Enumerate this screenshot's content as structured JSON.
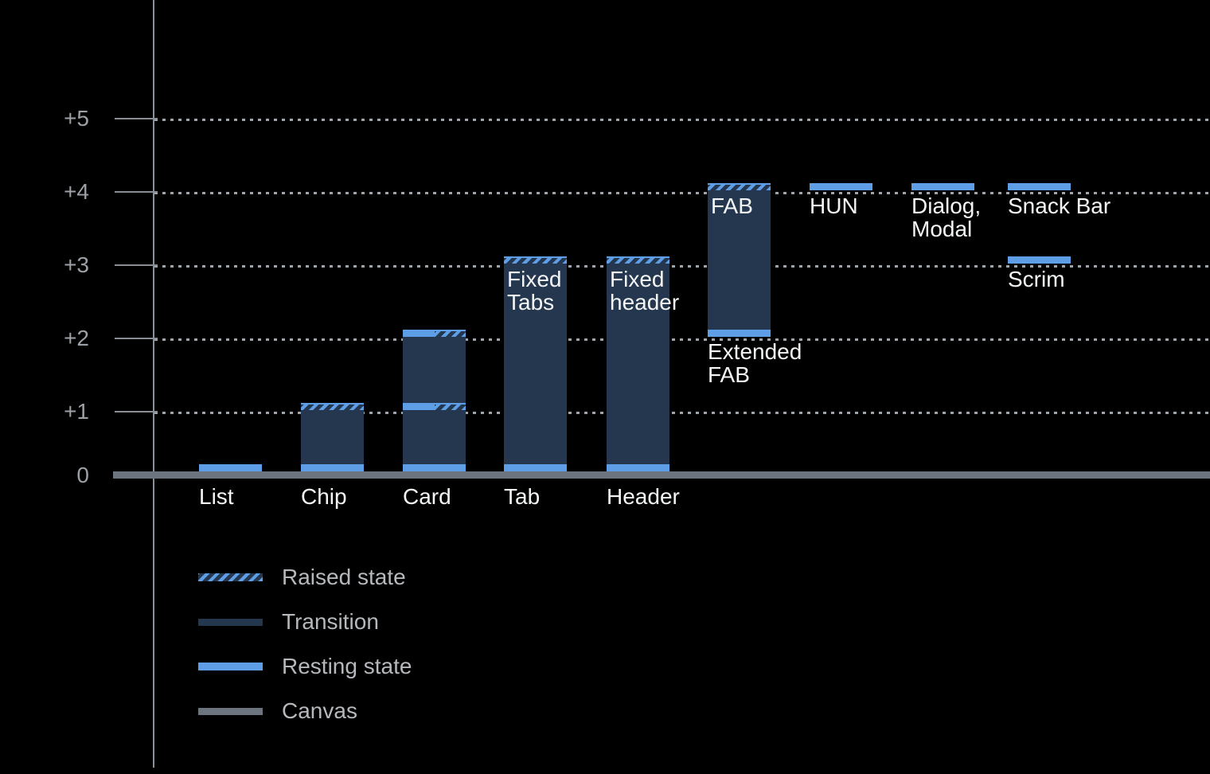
{
  "colors": {
    "resting_blue": "#5E9EE7",
    "transition_navy": "#24374E",
    "canvas_gray": "#6C7480",
    "background": "#000000",
    "grid_dot_gray": "#9FA4AA",
    "axis_text_gray": "#9BA0A6",
    "category_label_white": "#F3F5F6",
    "legend_text_gray": "#B5B8BD"
  },
  "chart_data": {
    "type": "bar",
    "title": "",
    "y_axis": {
      "range": [
        0,
        5
      ],
      "grid": "dotted-horizontal",
      "ticks": [
        {
          "label": "+5",
          "level": 5
        },
        {
          "label": "+4",
          "level": 4
        },
        {
          "label": "+3",
          "level": 3
        },
        {
          "label": "+2",
          "level": 2
        },
        {
          "label": "+1",
          "level": 1
        },
        {
          "label": "0",
          "level": 0
        }
      ]
    },
    "components": [
      {
        "name": "list",
        "col": 0,
        "label_lines": [
          "List"
        ],
        "label_placement": "axis",
        "markers": [
          {
            "level": 0,
            "style": "resting"
          }
        ]
      },
      {
        "name": "chip",
        "col": 1,
        "label_lines": [
          "Chip"
        ],
        "label_placement": "axis",
        "bar": {
          "from": 0,
          "to": 1
        },
        "markers": [
          {
            "level": 0,
            "style": "resting"
          },
          {
            "level": 1,
            "style": "raised"
          }
        ]
      },
      {
        "name": "card",
        "col": 2,
        "label_lines": [
          "Card"
        ],
        "label_placement": "axis",
        "bar": {
          "from": 0,
          "to": 2
        },
        "markers": [
          {
            "level": 0,
            "style": "resting"
          },
          {
            "level": 1,
            "style": "resting-raised"
          },
          {
            "level": 2,
            "style": "resting-raised"
          }
        ]
      },
      {
        "name": "tab",
        "col": 3,
        "label_lines": [
          "Tab"
        ],
        "label_placement": "axis",
        "bar": {
          "from": 0,
          "to": 3
        },
        "bar_label_lines": [
          "Fixed",
          "Tabs"
        ],
        "markers": [
          {
            "level": 0,
            "style": "resting"
          },
          {
            "level": 3,
            "style": "raised"
          }
        ]
      },
      {
        "name": "header",
        "col": 4,
        "label_lines": [
          "Header"
        ],
        "label_placement": "axis",
        "bar": {
          "from": 0,
          "to": 3
        },
        "bar_label_lines": [
          "Fixed",
          "header"
        ],
        "markers": [
          {
            "level": 0,
            "style": "resting"
          },
          {
            "level": 3,
            "style": "raised"
          }
        ]
      },
      {
        "name": "extended-fab",
        "col": 5,
        "label_lines": [
          "Extended",
          "FAB"
        ],
        "label_placement": "below-bar",
        "bar": {
          "from": 2,
          "to": 4
        },
        "bar_label_lines": [
          "FAB"
        ],
        "markers": [
          {
            "level": 2,
            "style": "resting"
          },
          {
            "level": 4,
            "style": "raised"
          }
        ]
      },
      {
        "name": "hun",
        "col": 6,
        "label_lines": [
          "HUN"
        ],
        "label_placement": "below-marker",
        "markers": [
          {
            "level": 4,
            "style": "resting"
          }
        ]
      },
      {
        "name": "dialog-modal",
        "col": 7,
        "label_lines": [
          "Dialog,",
          "Modal"
        ],
        "label_placement": "below-marker",
        "markers": [
          {
            "level": 4,
            "style": "resting"
          }
        ]
      },
      {
        "name": "snack-bar",
        "col": 8,
        "label_lines": [
          "Snack Bar"
        ],
        "label_placement": "below-marker",
        "markers": [
          {
            "level": 4,
            "style": "resting"
          }
        ]
      },
      {
        "name": "scrim",
        "col": 8,
        "label_lines": [
          "Scrim"
        ],
        "label_placement": "below-marker",
        "markers": [
          {
            "level": 3,
            "style": "resting"
          }
        ]
      }
    ],
    "legend": {
      "position": "bottom-left",
      "items": [
        {
          "label": "Raised state",
          "swatch": "raised"
        },
        {
          "label": "Transition",
          "swatch": "transition"
        },
        {
          "label": "Resting state",
          "swatch": "resting"
        },
        {
          "label": "Canvas",
          "swatch": "canvas"
        }
      ]
    }
  }
}
